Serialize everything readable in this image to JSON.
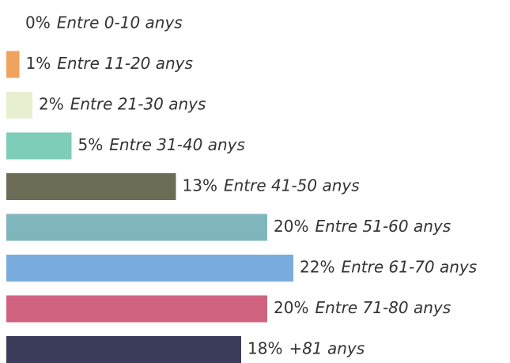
{
  "chart_data": {
    "type": "hbar",
    "categories": [
      "Entre 0-10 anys",
      "Entre 11-20 anys",
      "Entre 21-30 anys",
      "Entre 31-40 anys",
      "Entre 41-50 anys",
      "Entre 51-60 anys",
      "Entre 61-70 anys",
      "Entre 71-80 anys",
      "+81 anys"
    ],
    "values": [
      0,
      1,
      2,
      5,
      13,
      20,
      22,
      20,
      18
    ],
    "value_labels": [
      "0%",
      "1%",
      "2%",
      "5%",
      "13%",
      "20%",
      "22%",
      "20%",
      "18%"
    ],
    "colors": [
      "#cccccc",
      "#f0a35e",
      "#e8efd0",
      "#7ecdb9",
      "#6b6d57",
      "#7fb5bd",
      "#7aace0",
      "#d06480",
      "#3b3d5a"
    ]
  }
}
